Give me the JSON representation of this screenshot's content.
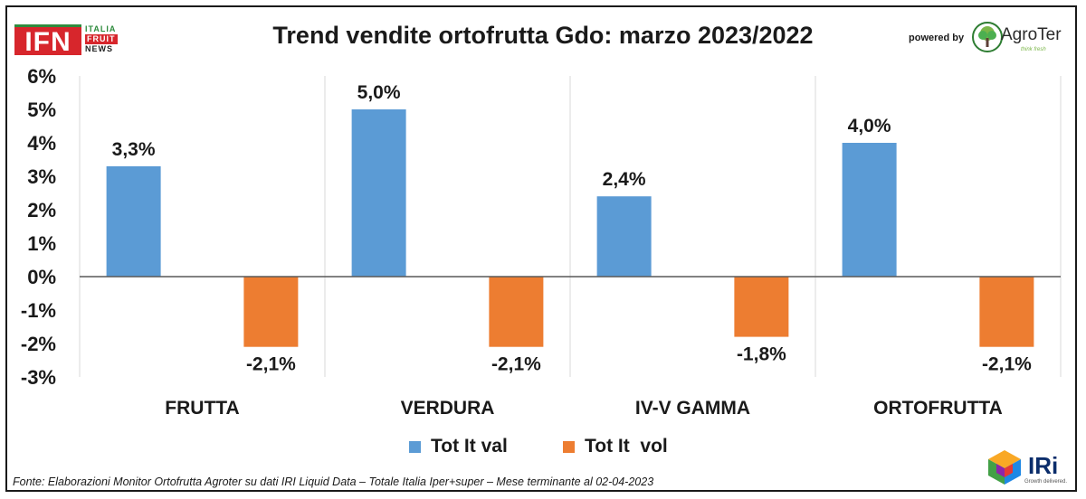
{
  "header": {
    "title": "Trend vendite ortofrutta Gdo: marzo 2023/2022",
    "powered_by": "powered by",
    "ifn_logo": {
      "main": "IFN",
      "line1": "ITALIA",
      "line2": "FRUIT",
      "line3": "NEWS"
    },
    "agroter_logo": {
      "name": "AgroTer",
      "tagline": "think fresh"
    }
  },
  "footer": {
    "source": "Fonte: Elaborazioni Monitor Ortofrutta Agroter su dati IRI Liquid Data – Totale Italia Iper+super – Mese terminante al 02-04-2023",
    "iri_logo": {
      "name": "IRi",
      "tagline": "Growth delivered."
    }
  },
  "colors": {
    "val": "#5b9bd5",
    "vol": "#ed7d31",
    "grid": "#d9d9d9",
    "axis": "#595959"
  },
  "chart_data": {
    "type": "bar",
    "title": "Trend vendite ortofrutta Gdo: marzo 2023/2022",
    "categories": [
      "FRUTTA",
      "VERDURA",
      "IV-V GAMMA",
      "ORTOFRUTTA"
    ],
    "series": [
      {
        "name": "Tot It val",
        "values": [
          3.3,
          5.0,
          2.4,
          4.0
        ],
        "labels": [
          "3,3%",
          "5,0%",
          "2,4%",
          "4,0%"
        ]
      },
      {
        "name": "Tot It  vol",
        "values": [
          -2.1,
          -2.1,
          -1.8,
          -2.1
        ],
        "labels": [
          "-2,1%",
          "-2,1%",
          "-1,8%",
          "-2,1%"
        ]
      }
    ],
    "ylim": [
      -3,
      6
    ],
    "yticks": [
      6,
      5,
      4,
      3,
      2,
      1,
      0,
      -1,
      -2,
      -3
    ],
    "ytick_labels": [
      "6%",
      "5%",
      "4%",
      "3%",
      "2%",
      "1%",
      "0%",
      "-1%",
      "-2%",
      "-3%"
    ],
    "xlabel": "",
    "ylabel": "",
    "grid": "vertical category separators",
    "legend": "bottom-center"
  }
}
